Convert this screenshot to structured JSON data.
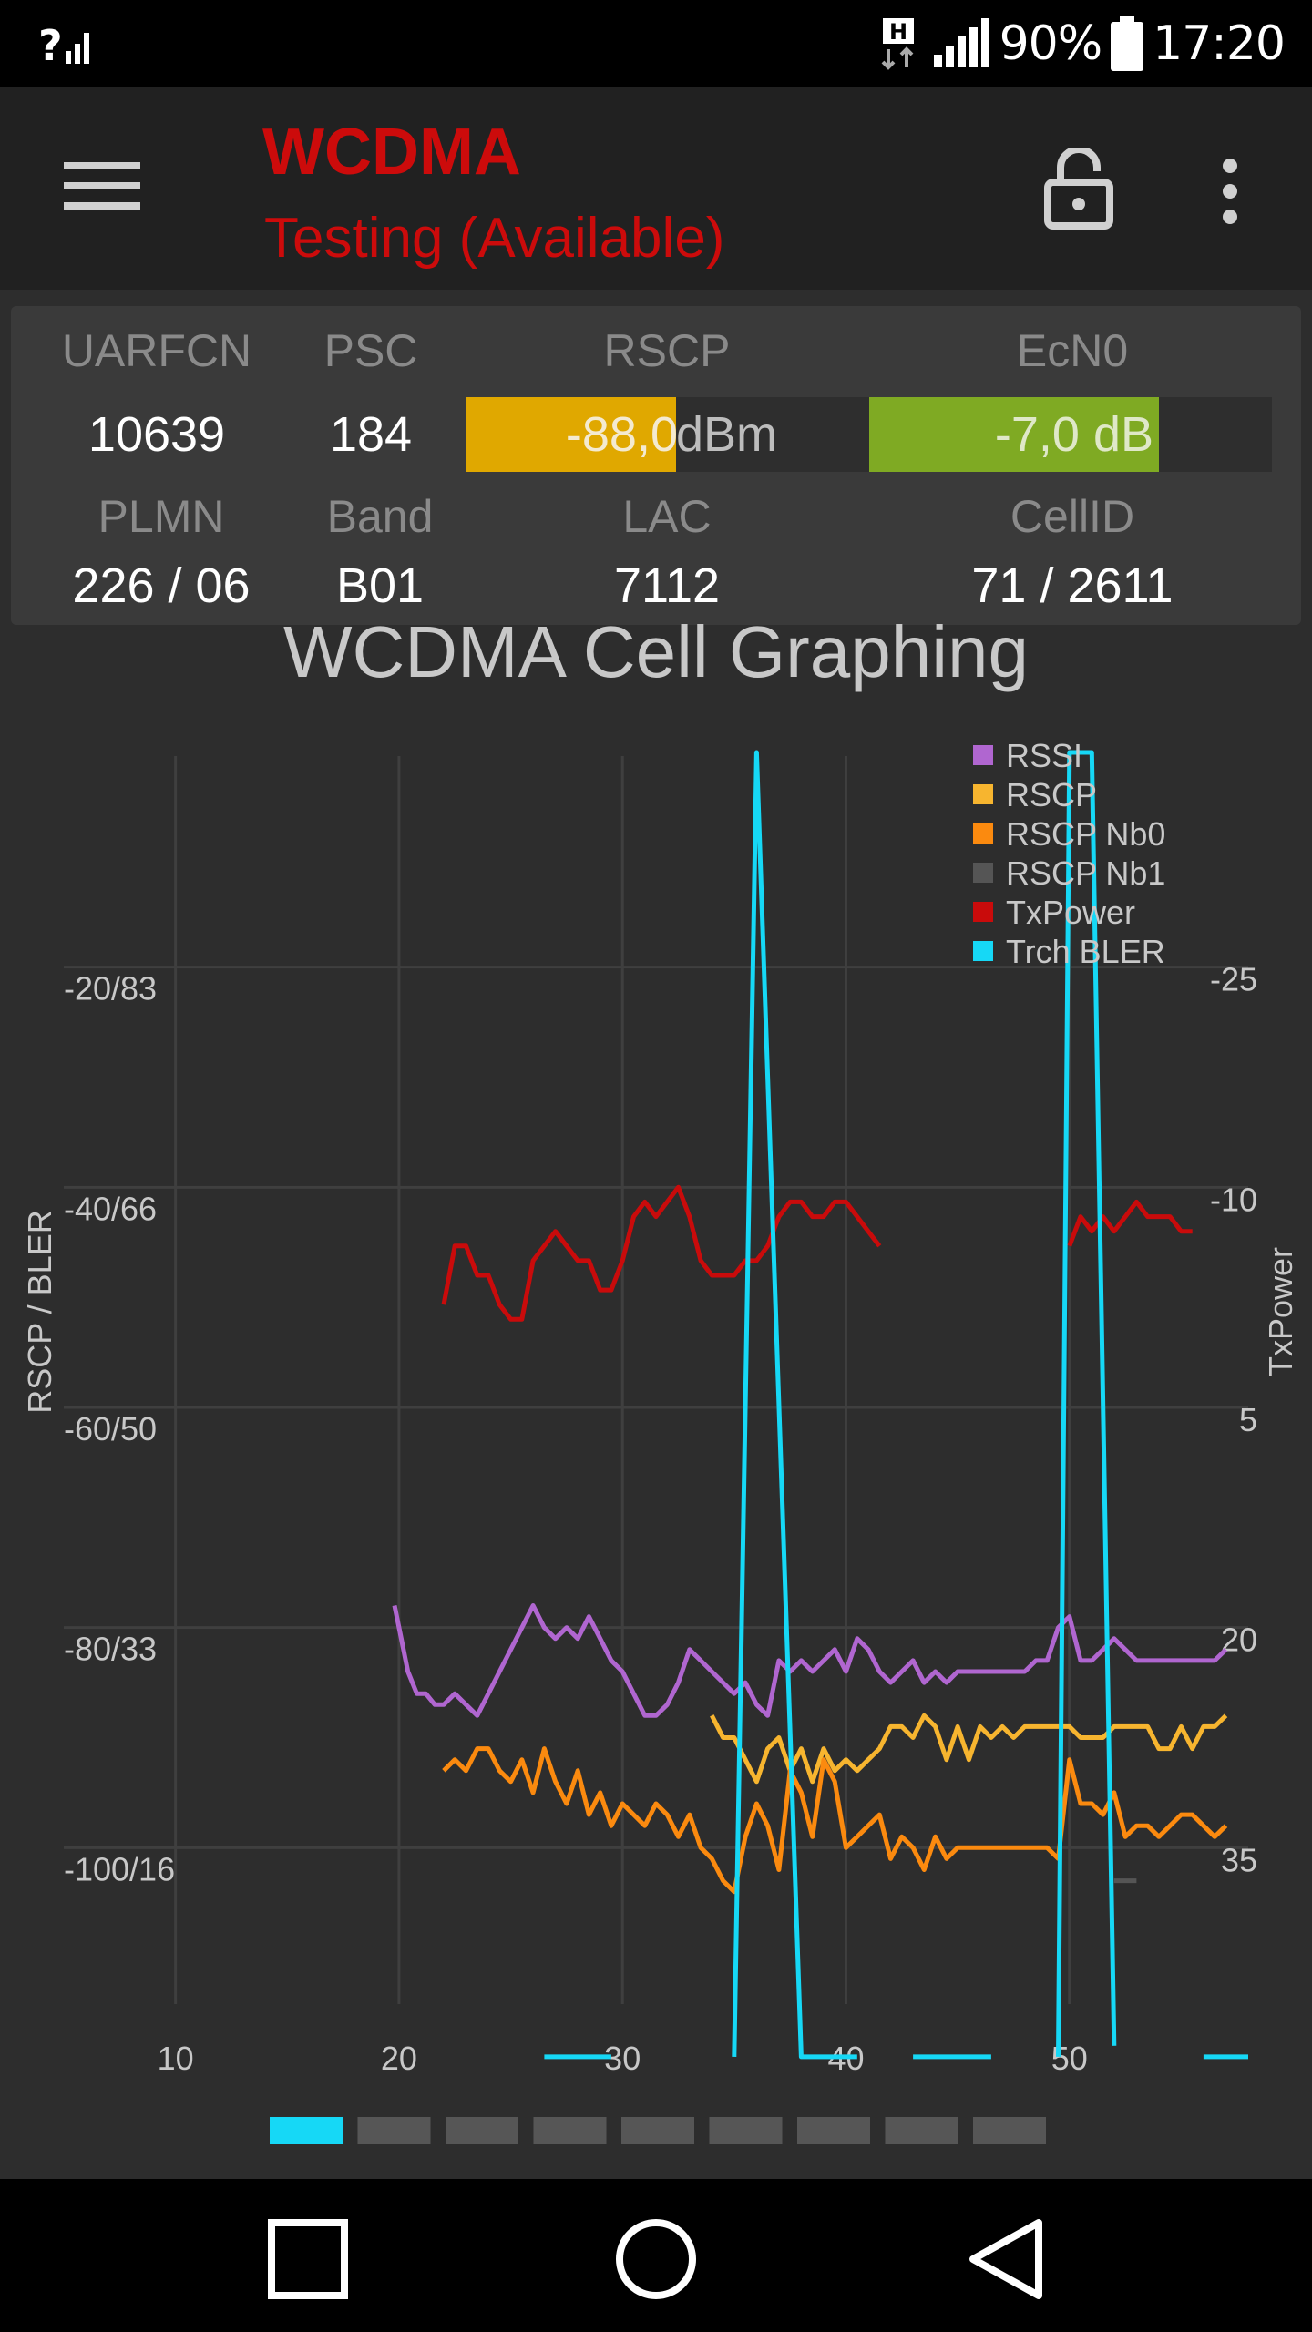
{
  "status_bar": {
    "network_type": "H",
    "battery_percent": "90%",
    "time": "17:20"
  },
  "app_bar": {
    "title": "WCDMA",
    "subtitle": "Testing (Available)",
    "title_color": "#cc0b0b"
  },
  "info": {
    "uarfcn": {
      "label": "UARFCN",
      "value": "10639"
    },
    "psc": {
      "label": "PSC",
      "value": "184"
    },
    "rscp": {
      "label": "RSCP",
      "value": "-88,0",
      "unit": "dBm",
      "level": 0.52,
      "color": "#e0a800"
    },
    "ecn0": {
      "label": "EcN0",
      "value": "-7,0 dB",
      "level": 0.72,
      "color": "#7faa23"
    },
    "plmn": {
      "label": "PLMN",
      "value": "226 / 06"
    },
    "band": {
      "label": "Band",
      "value": "B01"
    },
    "lac": {
      "label": "LAC",
      "value": "7112"
    },
    "cellid": {
      "label": "CellID",
      "value": "71 / 2611"
    }
  },
  "chart_data": {
    "type": "line",
    "title": "WCDMA Cell Graphing",
    "ylabel": "RSCP / BLER",
    "y2label": "TxPower",
    "xlim": [
      5,
      58
    ],
    "x_ticks": [
      "10",
      "20",
      "30",
      "40",
      "50"
    ],
    "ylim": [
      -120,
      0
    ],
    "y_ticks": [
      "-20/83",
      "-40/66",
      "-60/50",
      "-80/33",
      "-100/16"
    ],
    "y_tick_values": [
      -20,
      -40,
      -60,
      -80,
      -100
    ],
    "y2_ticks": [
      "-25",
      "-10",
      "5",
      "20",
      "35"
    ],
    "y2_tick_values": [
      -25,
      -10,
      5,
      20,
      35
    ],
    "grid": true,
    "legend_position": "top-right",
    "series": [
      {
        "name": "RSSI",
        "axis": "left",
        "color": "#b066d0",
        "x": [
          19.8,
          20.1,
          20.4,
          20.8,
          21.2,
          21.6,
          22,
          22.5,
          23,
          23.5,
          24,
          24.5,
          25,
          25.5,
          26,
          26.5,
          27,
          27.5,
          28,
          28.5,
          29,
          29.5,
          30,
          30.5,
          31,
          31.5,
          32,
          32.5,
          33,
          33.5,
          34,
          34.5,
          35,
          35.5,
          36,
          36.5,
          37,
          37.5,
          38,
          38.5,
          39,
          39.5,
          40,
          40.5,
          41,
          41.5,
          42,
          42.5,
          43,
          43.5,
          44,
          44.5,
          45,
          45.5,
          46,
          46.5,
          47,
          47.5,
          48,
          48.5,
          49,
          49.5,
          50,
          50.5,
          51,
          51.5,
          52,
          52.5,
          53,
          53.5,
          54,
          54.5,
          55,
          55.5,
          56,
          56.5,
          57
        ],
        "y": [
          -78,
          -81,
          -84,
          -86,
          -86,
          -87,
          -87,
          -86,
          -87,
          -88,
          -86,
          -84,
          -82,
          -80,
          -78,
          -80,
          -81,
          -80,
          -81,
          -79,
          -81,
          -83,
          -84,
          -86,
          -88,
          -88,
          -87,
          -85,
          -82,
          -83,
          -84,
          -85,
          -86,
          -85,
          -87,
          -88,
          -83,
          -84,
          -83,
          -84,
          -83,
          -82,
          -84,
          -81,
          -82,
          -84,
          -85,
          -84,
          -83,
          -85,
          -84,
          -85,
          -84,
          -84,
          -84,
          -84,
          -84,
          -84,
          -84,
          -83,
          -83,
          -80,
          -79,
          -83,
          -83,
          -82,
          -81,
          -82,
          -83,
          -83,
          -83,
          -83,
          -83,
          -83,
          -83,
          -83,
          -82
        ]
      },
      {
        "name": "RSCP",
        "axis": "left",
        "color": "#f7b52f",
        "x": [
          34,
          34.5,
          35,
          35.5,
          36,
          36.5,
          37,
          37.5,
          38,
          38.5,
          39,
          39.5,
          40,
          40.5,
          41,
          41.5,
          42,
          42.5,
          43,
          43.5,
          44,
          44.5,
          45,
          45.5,
          46,
          46.5,
          47,
          47.5,
          48,
          48.5,
          49,
          49.5,
          50,
          50.5,
          51,
          51.5,
          52,
          52.5,
          53,
          53.5,
          54,
          54.5,
          55,
          55.5,
          56,
          56.5,
          57
        ],
        "y": [
          -88,
          -90,
          -90,
          -92,
          -94,
          -91,
          -90,
          -93,
          -91,
          -94,
          -91,
          -93,
          -92,
          -93,
          -92,
          -91,
          -89,
          -89,
          -90,
          -88,
          -89,
          -92,
          -89,
          -92,
          -89,
          -90,
          -89,
          -90,
          -89,
          -89,
          -89,
          -89,
          -89,
          -90,
          -90,
          -90,
          -89,
          -89,
          -89,
          -89,
          -91,
          -91,
          -89,
          -91,
          -89,
          -89,
          -88
        ]
      },
      {
        "name": "RSCP Nb0",
        "axis": "left",
        "color": "#fb8a0f",
        "x": [
          22,
          22.5,
          23,
          23.5,
          24,
          24.5,
          25,
          25.5,
          26,
          26.5,
          27,
          27.5,
          28,
          28.5,
          29,
          29.5,
          30,
          30.5,
          31,
          31.5,
          32,
          32.5,
          33,
          33.5,
          34,
          34.5,
          35,
          35.5,
          36,
          36.5,
          37,
          37.5,
          38,
          38.5,
          39,
          39.5,
          40,
          40.5,
          41,
          41.5,
          42,
          42.5,
          43,
          43.5,
          44,
          44.5,
          45,
          45.5,
          46,
          46.5,
          47,
          47.5,
          48,
          48.5,
          49,
          49.5,
          50,
          50.5,
          51,
          51.5,
          52,
          52.5,
          53,
          53.5,
          54,
          54.5,
          55,
          55.5,
          56,
          56.5,
          57
        ],
        "y": [
          -93,
          -92,
          -93,
          -91,
          -91,
          -93,
          -94,
          -92,
          -95,
          -91,
          -94,
          -96,
          -93,
          -97,
          -95,
          -98,
          -96,
          -97,
          -98,
          -96,
          -97,
          -99,
          -97,
          -100,
          -101,
          -103,
          -104,
          -99,
          -96,
          -98,
          -102,
          -93,
          -95,
          -99,
          -92,
          -94,
          -100,
          -99,
          -98,
          -97,
          -101,
          -99,
          -100,
          -102,
          -99,
          -101,
          -100,
          -100,
          -100,
          -100,
          -100,
          -100,
          -100,
          -100,
          -100,
          -101,
          -92,
          -96,
          -96,
          -97,
          -95,
          -99,
          -98,
          -98,
          -99,
          -98,
          -97,
          -97,
          -98,
          -99,
          -98
        ]
      },
      {
        "name": "RSCP Nb1",
        "axis": "left",
        "color": "#555555",
        "x": [
          52,
          53
        ],
        "y": [
          -103,
          -103
        ]
      },
      {
        "name": "TxPower",
        "axis": "right",
        "color": "#c90b0b",
        "x": [
          22,
          22.5,
          23,
          23.5,
          24,
          24.5,
          25,
          25.5,
          26,
          26.5,
          27,
          27.5,
          28,
          28.5,
          29,
          29.5,
          30,
          30.5,
          31,
          31.5,
          32,
          32.5,
          33,
          33.5,
          34,
          34.5,
          35,
          35.5,
          36,
          36.5,
          37,
          37.5,
          38,
          38.5,
          39,
          39.5,
          40,
          40.5,
          41,
          41.5,
          null,
          50,
          50.5,
          51,
          51.5,
          52,
          52.5,
          53,
          53.5,
          54,
          54.5,
          55,
          55.5
        ],
        "y": [
          -2,
          -6,
          -6,
          -4,
          -4,
          -2,
          -1,
          -1,
          -5,
          -6,
          -7,
          -6,
          -5,
          -5,
          -3,
          -3,
          -5,
          -8,
          -9,
          -8,
          -9,
          -10,
          -8,
          -5,
          -4,
          -4,
          -4,
          -5,
          -5,
          -6,
          -8,
          -9,
          -9,
          -8,
          -8,
          -9,
          -9,
          -8,
          -7,
          -6,
          null,
          -6,
          -8,
          -7,
          -8,
          -7,
          -8,
          -9,
          -8,
          -8,
          -8,
          -7,
          -7
        ]
      },
      {
        "name": "Trch BLER",
        "axis": "left",
        "color": "#16d8f6",
        "x": [
          26.5,
          29.5,
          null,
          35,
          36,
          38,
          40.5,
          null,
          43,
          46.5,
          null,
          49.5,
          50,
          51,
          52,
          null,
          56,
          58
        ],
        "y": [
          -119,
          -119,
          null,
          -119,
          -0.5,
          -119,
          -119,
          null,
          -119,
          -119,
          null,
          -119,
          -0.5,
          -0.5,
          -118,
          null,
          -119,
          -119
        ]
      }
    ]
  },
  "pager": {
    "pages": 9,
    "current": 1,
    "active_color": "#16d8f6"
  }
}
